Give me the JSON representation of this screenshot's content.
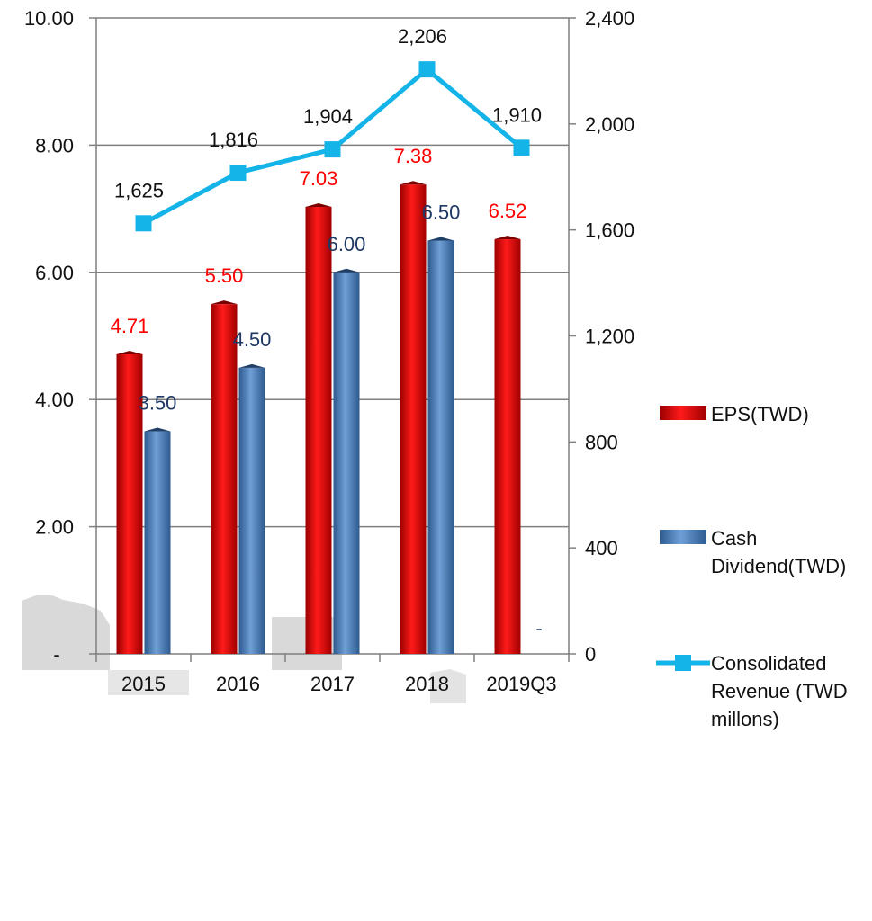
{
  "colors": {
    "eps": "#ff0000",
    "dividend": "#4f81bd",
    "revenue": "#14b4e8",
    "grid": "#7f7f7f",
    "eps_label": "#ff0000",
    "dividend_label": "#1f3864"
  },
  "chart_data": {
    "type": "bar",
    "categories": [
      "2015",
      "2016",
      "2017",
      "2018",
      "2019Q3"
    ],
    "series": [
      {
        "name": "EPS(TWD)",
        "type": "bar",
        "axis": "left",
        "values": [
          4.71,
          5.5,
          7.03,
          7.38,
          6.52
        ],
        "labels": [
          "4.71",
          "5.50",
          "7.03",
          "7.38",
          "6.52"
        ]
      },
      {
        "name": "Cash Dividend(TWD)",
        "type": "bar",
        "axis": "left",
        "values": [
          3.5,
          4.5,
          6.0,
          6.5,
          0
        ],
        "labels": [
          "3.50",
          "4.50",
          "6.00",
          "6.50",
          "-"
        ]
      },
      {
        "name": "Consolidated Revenue (TWD millons)",
        "type": "line",
        "axis": "right",
        "marker": "square",
        "values": [
          1625,
          1816,
          1904,
          2206,
          1910
        ],
        "labels": [
          "1,625",
          "1,816",
          "1,904",
          "2,206",
          "1,910"
        ]
      }
    ],
    "y_left": {
      "ylim": [
        0,
        10
      ],
      "ticks": [
        0,
        2,
        4,
        6,
        8,
        10
      ],
      "tick_labels": [
        "-",
        "2.00",
        "4.00",
        "6.00",
        "8.00",
        "10.00"
      ]
    },
    "y_right": {
      "ylim": [
        0,
        2400
      ],
      "ticks": [
        0,
        400,
        800,
        1200,
        1600,
        2000,
        2400
      ],
      "tick_labels": [
        "0",
        "400",
        "800",
        "1,200",
        "1,600",
        "2,000",
        "2,400"
      ]
    },
    "grid": true,
    "legend": {
      "position": "right",
      "items": [
        {
          "series": 0,
          "lines": [
            "EPS(TWD)"
          ]
        },
        {
          "series": 1,
          "lines": [
            "Cash",
            "Dividend(TWD)"
          ]
        },
        {
          "series": 2,
          "lines": [
            "Consolidated",
            "Revenue (TWD",
            "millons)"
          ]
        }
      ]
    }
  }
}
